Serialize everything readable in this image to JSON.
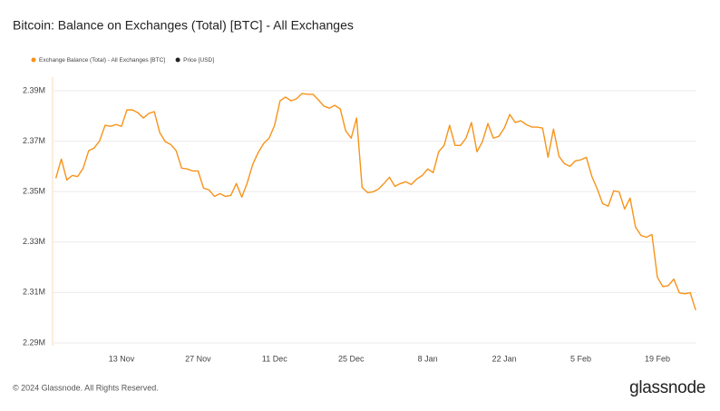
{
  "chart_data": {
    "type": "line",
    "title": "Bitcoin: Balance on Exchanges (Total) [BTC] - All Exchanges",
    "footer": "© 2024 Glassnode. All Rights Reserved.",
    "brand": "glassnode",
    "categories": [
      null,
      null,
      null,
      null,
      null,
      null,
      null,
      null,
      null,
      null,
      null,
      null,
      "13 Nov",
      null,
      null,
      null,
      null,
      null,
      null,
      null,
      null,
      null,
      null,
      null,
      null,
      null,
      "27 Nov",
      null,
      null,
      null,
      null,
      null,
      null,
      null,
      null,
      null,
      null,
      null,
      null,
      null,
      "11 Dec",
      null,
      null,
      null,
      null,
      null,
      null,
      null,
      null,
      null,
      null,
      null,
      null,
      null,
      "25 Dec",
      null,
      null,
      null,
      null,
      null,
      null,
      null,
      null,
      null,
      null,
      null,
      null,
      null,
      "8 Jan",
      null,
      null,
      null,
      null,
      null,
      null,
      null,
      null,
      null,
      null,
      null,
      null,
      null,
      "22 Jan",
      null,
      null,
      null,
      null,
      null,
      null,
      null,
      null,
      null,
      null,
      null,
      null,
      null,
      "5 Feb",
      null,
      null,
      null,
      null,
      null,
      null,
      null,
      null,
      null,
      null,
      null,
      null,
      null,
      "19 Feb",
      null,
      null,
      null,
      null,
      null,
      null,
      null
    ],
    "series": [
      {
        "name": "Exchange Balance (Total) - All Exchanges [BTC]",
        "color": "#f7931a",
        "values": [
          2355300,
          2362900,
          2354600,
          2356400,
          2356000,
          2359300,
          2366200,
          2367300,
          2370100,
          2376300,
          2375900,
          2376600,
          2375900,
          2382400,
          2382400,
          2381300,
          2379200,
          2381000,
          2381700,
          2373400,
          2369800,
          2368700,
          2366200,
          2359300,
          2359000,
          2358200,
          2358200,
          2351400,
          2350700,
          2348100,
          2349200,
          2348100,
          2348500,
          2353200,
          2347800,
          2353500,
          2360800,
          2365500,
          2369100,
          2371200,
          2376300,
          2386000,
          2387500,
          2386000,
          2386800,
          2388900,
          2388600,
          2388600,
          2386400,
          2383900,
          2383100,
          2384200,
          2382800,
          2374100,
          2371200,
          2379200,
          2351700,
          2349600,
          2349900,
          2351000,
          2353200,
          2355700,
          2352100,
          2353200,
          2353900,
          2352800,
          2355000,
          2356400,
          2359000,
          2357500,
          2365800,
          2368300,
          2376300,
          2368300,
          2368300,
          2371200,
          2377400,
          2365800,
          2369800,
          2377000,
          2371200,
          2371900,
          2375200,
          2380600,
          2377400,
          2378100,
          2376600,
          2375600,
          2375600,
          2375200,
          2363600,
          2374800,
          2364000,
          2361100,
          2360000,
          2362200,
          2362600,
          2363600,
          2356100,
          2351000,
          2345200,
          2344200,
          2350300,
          2349900,
          2343100,
          2347400,
          2335900,
          2332600,
          2331900,
          2333000,
          2316000,
          2312300,
          2312700,
          2315300,
          2309900,
          2309500,
          2309900,
          2303000
        ]
      }
    ],
    "legend_only": [
      {
        "name": "Price [USD]",
        "color": "#222222"
      }
    ],
    "ylim": [
      2288900,
      2395400
    ],
    "yticks": [
      {
        "value": 2290000,
        "label": "2.29M"
      },
      {
        "value": 2310000,
        "label": "2.31M"
      },
      {
        "value": 2330000,
        "label": "2.33M"
      },
      {
        "value": 2350000,
        "label": "2.35M"
      },
      {
        "value": 2370000,
        "label": "2.37M"
      },
      {
        "value": 2390000,
        "label": "2.39M"
      }
    ],
    "grid": true
  }
}
